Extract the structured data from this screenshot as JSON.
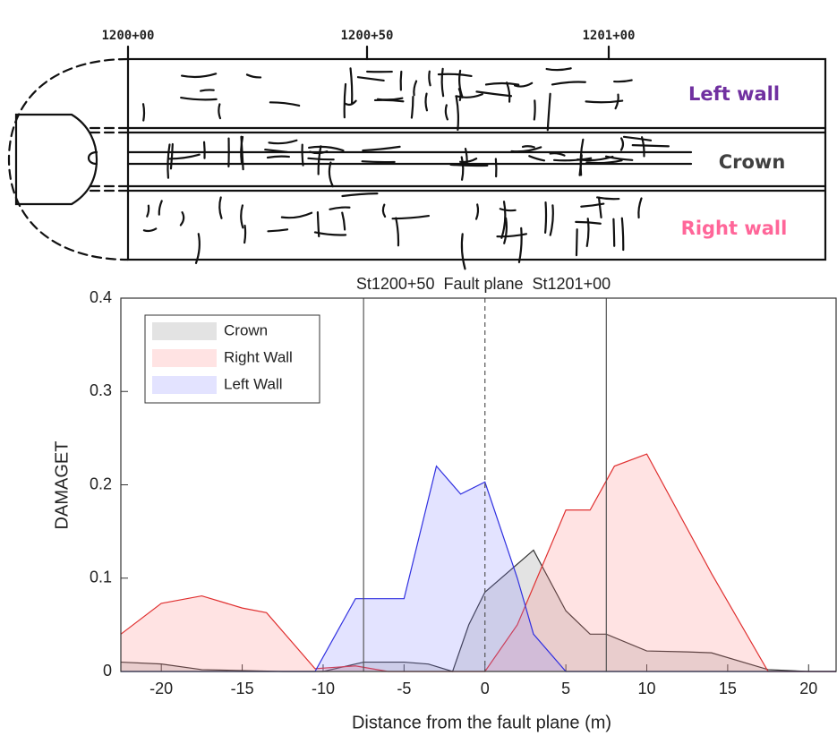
{
  "sketch": {
    "stations": [
      "1200+00",
      "1200+50",
      "1201+00"
    ],
    "wall_labels": {
      "left": "Left wall",
      "crown": "Crown",
      "right": "Right wall"
    }
  },
  "chart_data": {
    "type": "area",
    "title": "St1200+50  Fault plane  St1201+00",
    "xlabel": "Distance from the fault plane (m)",
    "ylabel": "DAMAGET",
    "xlim": [
      -22.5,
      21.7
    ],
    "ylim": [
      0,
      0.4
    ],
    "xticks": [
      -20,
      -15,
      -10,
      -5,
      0,
      5,
      10,
      15,
      20
    ],
    "yticks": [
      0,
      0.1,
      0.2,
      0.3,
      0.4
    ],
    "vlines": [
      {
        "x": -7.5,
        "style": "solid"
      },
      {
        "x": 0,
        "style": "dashed"
      },
      {
        "x": 7.5,
        "style": "solid"
      }
    ],
    "legend": "upper left",
    "series": [
      {
        "name": "Crown",
        "color": "#333333",
        "fill": "#808080",
        "x": [
          -22.5,
          -20,
          -17.5,
          -15,
          -12.5,
          -10,
          -7.5,
          -5,
          -3.5,
          -2,
          -1,
          0,
          3,
          5,
          6.5,
          7.5,
          10,
          12.5,
          14,
          17.5,
          20,
          21.7
        ],
        "values": [
          0.01,
          0.008,
          0.002,
          0.001,
          0,
          0,
          0.01,
          0.01,
          0.008,
          0,
          0.05,
          0.085,
          0.13,
          0.065,
          0.04,
          0.04,
          0.022,
          0.021,
          0.02,
          0.002,
          0,
          0
        ]
      },
      {
        "name": "Right Wall",
        "color": "#e03030",
        "fill": "#ff8080",
        "x": [
          -22.5,
          -20,
          -17.5,
          -15,
          -13.5,
          -10.5,
          -8,
          -6,
          0,
          2,
          5,
          6.5,
          8,
          10,
          14,
          17.5,
          21.7
        ],
        "values": [
          0.04,
          0.073,
          0.081,
          0.068,
          0.063,
          0.003,
          0.006,
          0,
          0,
          0.05,
          0.173,
          0.173,
          0.22,
          0.233,
          0.105,
          0,
          0
        ]
      },
      {
        "name": "Left Wall",
        "color": "#3030e0",
        "fill": "#8080ff",
        "x": [
          -22.5,
          -10.5,
          -8,
          -5,
          -3,
          -1.5,
          0,
          2,
          3,
          5,
          21.7
        ],
        "values": [
          0,
          0,
          0.078,
          0.078,
          0.22,
          0.19,
          0.203,
          0.1,
          0.04,
          0,
          0
        ]
      }
    ]
  }
}
